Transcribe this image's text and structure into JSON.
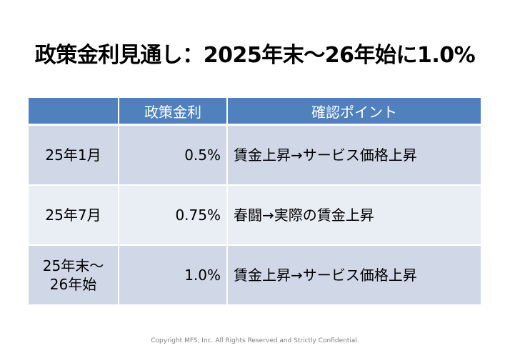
{
  "title": "政策金利見通し：2025年末～26年始に1.0%",
  "table": {
    "headers": [
      "",
      "政策金利",
      "確認ポイント"
    ],
    "rows": [
      {
        "period_lines": [
          "25年1月"
        ],
        "rate": "0.5%",
        "point": "賃金上昇→サービス価格上昇"
      },
      {
        "period_lines": [
          "25年7月"
        ],
        "rate": "0.75%",
        "point": "春闘→実際の賃金上昇"
      },
      {
        "period_lines": [
          "25年末～",
          "26年始"
        ],
        "rate": "1.0%",
        "point": "賃金上昇→サービス価格上昇"
      }
    ]
  },
  "footer": "Copyright MFS, Inc.  All Rights Reserved and Strictly Confidential.",
  "colors": {
    "header_bg": "#4f81bd",
    "row_dark": "#d0d8e8",
    "row_light": "#e9edf4"
  }
}
